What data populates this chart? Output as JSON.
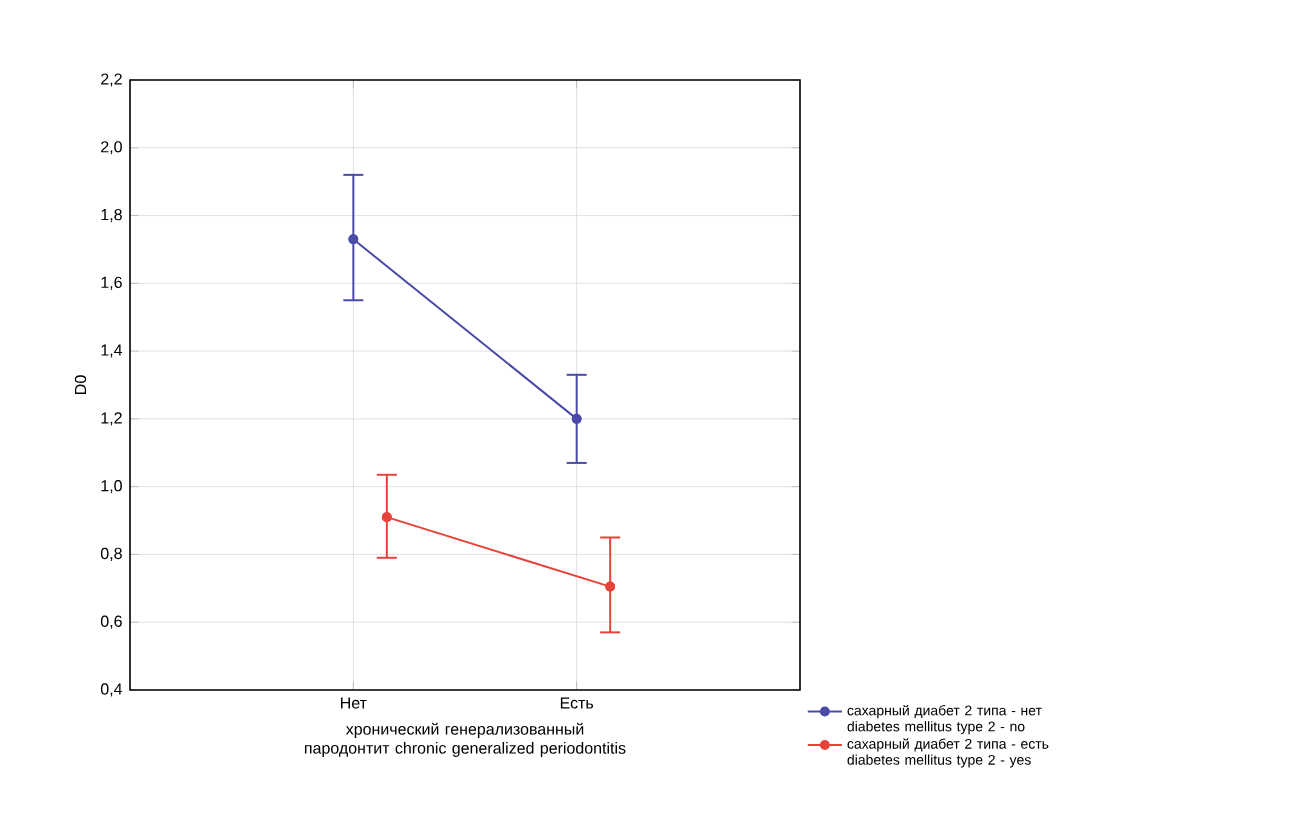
{
  "chart_data": {
    "type": "line",
    "xlabel": "хронический генерализованный пародонтит chronic generalized periodontitis",
    "ylabel": "D0",
    "categories": [
      "Нет",
      "Есть"
    ],
    "series": [
      {
        "name": "сахарный диабет 2 типа - нет diabetes mellitus type 2 - no",
        "color": "#4a4aa8",
        "values": [
          1.73,
          1.2
        ],
        "errors": [
          [
            1.55,
            1.92
          ],
          [
            1.07,
            1.33
          ]
        ]
      },
      {
        "name": "сахарный диабет 2 типа - есть diabetes mellitus type 2 - yes",
        "color": "#e8433a",
        "values": [
          0.91,
          0.705
        ],
        "errors": [
          [
            0.79,
            1.035
          ],
          [
            0.57,
            0.85
          ]
        ]
      }
    ],
    "ylim": [
      0.4,
      2.2
    ],
    "yticks": [
      {
        "value": 0.4,
        "label": "0,4"
      },
      {
        "value": 0.6,
        "label": "0,6"
      },
      {
        "value": 0.8,
        "label": "0,8"
      },
      {
        "value": 1.0,
        "label": "1,0"
      },
      {
        "value": 1.2,
        "label": "1,2"
      },
      {
        "value": 1.4,
        "label": "1,4"
      },
      {
        "value": 1.6,
        "label": "1,6"
      },
      {
        "value": 1.8,
        "label": "1,8"
      },
      {
        "value": 2.0,
        "label": "2,0"
      },
      {
        "value": 2.2,
        "label": "2,2"
      }
    ],
    "grid": true,
    "legend": "bottom right",
    "marker": "circle",
    "line_style": "solid"
  }
}
